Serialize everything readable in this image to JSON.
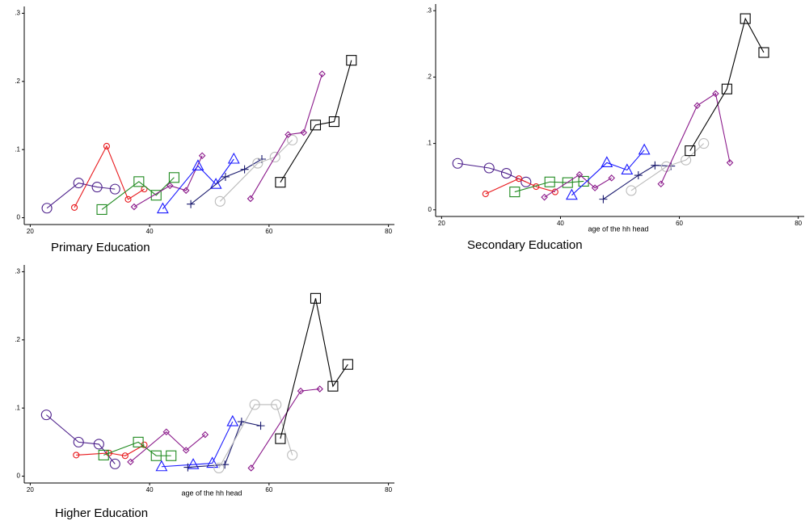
{
  "chart_data": [
    {
      "type": "line",
      "title": "Primary Education",
      "xlim": [
        19,
        81
      ],
      "ylim": [
        -0.01,
        0.31
      ],
      "xticks": [
        20,
        40,
        60,
        80
      ],
      "yticks": [
        0,
        {
          "value": 0.1,
          "label": ".1"
        },
        {
          "value": 0.2,
          "label": ".2"
        },
        {
          "value": 0.3,
          "label": ".3"
        }
      ],
      "series": [
        {
          "color": "#4b1e8a",
          "marker": "circle",
          "x": [
            22.8,
            28.1,
            31.2,
            34.2
          ],
          "values": [
            0.014,
            0.051,
            0.045,
            0.042
          ]
        },
        {
          "color": "#e8191d",
          "marker": "small-circle",
          "x": [
            27.4,
            32.8,
            36.4,
            39.1
          ],
          "values": [
            0.015,
            0.105,
            0.027,
            0.042
          ]
        },
        {
          "color": "#1f8a1f",
          "marker": "square",
          "x": [
            32.0,
            38.2,
            41.1,
            44.1
          ],
          "values": [
            0.012,
            0.053,
            0.033,
            0.059
          ]
        },
        {
          "color": "#8b1a8b",
          "marker": "diamond",
          "x": [
            37.4,
            43.4,
            46.1,
            48.8
          ],
          "values": [
            0.016,
            0.047,
            0.04,
            0.091
          ]
        },
        {
          "color": "#1a1aff",
          "marker": "triangle",
          "x": [
            42.2,
            48.1,
            51.1,
            54.1
          ],
          "values": [
            0.013,
            0.076,
            0.049,
            0.086
          ]
        },
        {
          "color": "#1a1a6e",
          "marker": "plus",
          "x": [
            46.9,
            52.7,
            55.9,
            58.8
          ],
          "values": [
            0.02,
            0.06,
            0.071,
            0.086
          ]
        },
        {
          "color": "#bbbbbb",
          "marker": "circle",
          "x": [
            51.8,
            58.1,
            61.0,
            63.9
          ],
          "values": [
            0.024,
            0.08,
            0.089,
            0.114
          ]
        },
        {
          "color": "#8b1a8b",
          "marker": "diamond",
          "x": [
            56.9,
            63.2,
            65.8,
            68.9
          ],
          "values": [
            0.028,
            0.122,
            0.125,
            0.211
          ]
        },
        {
          "color": "#000000",
          "marker": "square",
          "x": [
            61.9,
            67.8,
            70.9,
            73.8
          ],
          "values": [
            0.052,
            0.136,
            0.141,
            0.231
          ]
        }
      ]
    },
    {
      "type": "line",
      "title": "Secondary Education",
      "xlabel": "age of the hh head",
      "xlim": [
        19,
        81
      ],
      "ylim": [
        -0.01,
        0.31
      ],
      "xticks": [
        20,
        40,
        60,
        80
      ],
      "yticks": [
        0,
        {
          "value": 0.1,
          "label": ".1"
        },
        {
          "value": 0.2,
          "label": ".2"
        },
        {
          "value": 0.3,
          "label": ".3"
        }
      ],
      "series": [
        {
          "color": "#4b1e8a",
          "marker": "circle",
          "x": [
            22.7,
            28.0,
            30.9,
            34.2
          ],
          "values": [
            0.07,
            0.063,
            0.055,
            0.042
          ]
        },
        {
          "color": "#e8191d",
          "marker": "small-circle",
          "x": [
            27.4,
            33.0,
            35.9,
            39.1
          ],
          "values": [
            0.024,
            0.047,
            0.035,
            0.027
          ]
        },
        {
          "color": "#1f8a1f",
          "marker": "square",
          "x": [
            32.3,
            38.2,
            41.2,
            43.9
          ],
          "values": [
            0.027,
            0.042,
            0.041,
            0.043
          ]
        },
        {
          "color": "#8b1a8b",
          "marker": "diamond",
          "x": [
            37.3,
            43.2,
            45.8,
            48.6
          ],
          "values": [
            0.019,
            0.053,
            0.033,
            0.048
          ]
        },
        {
          "color": "#1a1aff",
          "marker": "triangle",
          "x": [
            41.9,
            47.8,
            51.2,
            54.1
          ],
          "values": [
            0.022,
            0.071,
            0.06,
            0.09
          ]
        },
        {
          "color": "#1a1a6e",
          "marker": "plus",
          "x": [
            47.2,
            53.1,
            55.9,
            58.6
          ],
          "values": [
            0.016,
            0.052,
            0.067,
            0.066
          ]
        },
        {
          "color": "#bbbbbb",
          "marker": "circle",
          "x": [
            51.9,
            57.8,
            61.1,
            64.1
          ],
          "values": [
            0.029,
            0.065,
            0.075,
            0.1
          ]
        },
        {
          "color": "#8b1a8b",
          "marker": "diamond",
          "x": [
            56.9,
            63.0,
            66.1,
            68.5
          ],
          "values": [
            0.039,
            0.157,
            0.175,
            0.071
          ]
        },
        {
          "color": "#000000",
          "marker": "square",
          "x": [
            61.8,
            68.0,
            71.1,
            74.2
          ],
          "values": [
            0.089,
            0.182,
            0.288,
            0.237
          ]
        }
      ]
    },
    {
      "type": "line",
      "title": "Higher Education",
      "xlabel": "age of the hh head",
      "xlim": [
        19,
        81
      ],
      "ylim": [
        -0.01,
        0.31
      ],
      "xticks": [
        20,
        40,
        60,
        80
      ],
      "yticks": [
        0,
        {
          "value": 0.1,
          "label": ".1"
        },
        {
          "value": 0.2,
          "label": ".2"
        },
        {
          "value": 0.3,
          "label": ".3"
        }
      ],
      "series": [
        {
          "color": "#4b1e8a",
          "marker": "circle",
          "x": [
            22.7,
            28.1,
            31.5,
            34.2
          ],
          "values": [
            0.09,
            0.05,
            0.047,
            0.018
          ]
        },
        {
          "color": "#e8191d",
          "marker": "small-circle",
          "x": [
            27.7,
            33.2,
            35.9,
            39.1
          ],
          "values": [
            0.031,
            0.034,
            0.03,
            0.046
          ]
        },
        {
          "color": "#1f8a1f",
          "marker": "square",
          "x": [
            32.3,
            38.1,
            41.1,
            43.6
          ],
          "values": [
            0.031,
            0.05,
            0.03,
            0.03
          ]
        },
        {
          "color": "#8b1a8b",
          "marker": "diamond",
          "x": [
            36.8,
            42.8,
            46.1,
            49.3
          ],
          "values": [
            0.021,
            0.065,
            0.038,
            0.061
          ]
        },
        {
          "color": "#1a1aff",
          "marker": "triangle",
          "x": [
            42.0,
            47.3,
            50.5,
            53.9
          ],
          "values": [
            0.014,
            0.017,
            0.019,
            0.08
          ]
        },
        {
          "color": "#1a1a6e",
          "marker": "plus",
          "x": [
            46.4,
            52.6,
            55.4,
            58.6
          ],
          "values": [
            0.013,
            0.017,
            0.08,
            0.074
          ]
        },
        {
          "color": "#bbbbbb",
          "marker": "circle",
          "x": [
            51.6,
            57.6,
            61.2,
            63.9
          ],
          "values": [
            0.012,
            0.105,
            0.105,
            0.031
          ]
        },
        {
          "color": "#8b1a8b",
          "marker": "diamond",
          "x": [
            57.0,
            65.3,
            68.5
          ],
          "values": [
            0.012,
            0.125,
            0.128
          ]
        },
        {
          "color": "#000000",
          "marker": "square",
          "x": [
            61.9,
            67.8,
            70.7,
            73.2
          ],
          "values": [
            0.055,
            0.261,
            0.132,
            0.164
          ]
        }
      ]
    }
  ]
}
